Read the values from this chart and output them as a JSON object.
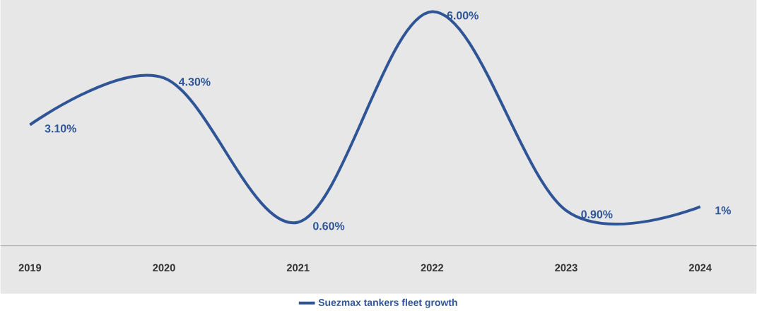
{
  "chart_data": {
    "type": "line",
    "categories": [
      "2019",
      "2020",
      "2021",
      "2022",
      "2023",
      "2024"
    ],
    "series": [
      {
        "name": "Suezmax tankers fleet growth",
        "color": "#2f5597",
        "values": [
          3.1,
          4.3,
          0.6,
          6.0,
          0.9,
          1
        ],
        "value_labels": [
          "3.10%",
          "4.30%",
          "0.60%",
          "6.00%",
          "0.90%",
          "1%"
        ]
      }
    ],
    "ylim": [
      0,
      6.3
    ],
    "tick_labels": "x",
    "legend": "bottom",
    "grid": false
  }
}
